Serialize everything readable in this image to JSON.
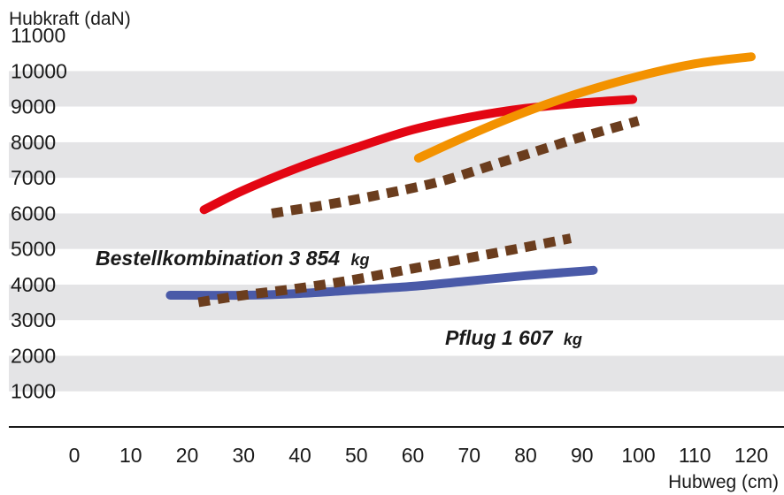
{
  "chart_data": {
    "type": "line",
    "ylabel": "Hubkraft (daN)",
    "xlabel": "Hubweg (cm)",
    "xlim": [
      0,
      120
    ],
    "ylim": [
      0,
      11000
    ],
    "xticks": [
      0,
      10,
      20,
      30,
      40,
      50,
      60,
      70,
      80,
      90,
      100,
      110,
      120
    ],
    "yticks": [
      1000,
      2000,
      3000,
      4000,
      5000,
      6000,
      7000,
      8000,
      9000,
      10000,
      11000
    ],
    "grid": "alternating horizontal bands",
    "series": [
      {
        "color": "#e30613",
        "style": "solid",
        "points": [
          [
            23,
            6100
          ],
          [
            30,
            6650
          ],
          [
            40,
            7300
          ],
          [
            50,
            7850
          ],
          [
            60,
            8350
          ],
          [
            70,
            8700
          ],
          [
            80,
            8950
          ],
          [
            90,
            9100
          ],
          [
            99,
            9200
          ]
        ]
      },
      {
        "color": "#f39200",
        "style": "solid",
        "points": [
          [
            61,
            7550
          ],
          [
            70,
            8200
          ],
          [
            80,
            8850
          ],
          [
            90,
            9400
          ],
          [
            100,
            9850
          ],
          [
            110,
            10200
          ],
          [
            120,
            10400
          ]
        ]
      },
      {
        "color": "#6b3d1e",
        "style": "dotted",
        "points": [
          [
            35,
            6000
          ],
          [
            45,
            6250
          ],
          [
            55,
            6550
          ],
          [
            65,
            6900
          ],
          [
            75,
            7400
          ],
          [
            85,
            7900
          ],
          [
            90,
            8150
          ],
          [
            100,
            8600
          ]
        ]
      },
      {
        "color": "#4a5aa8",
        "style": "solid",
        "points": [
          [
            17,
            3700
          ],
          [
            30,
            3700
          ],
          [
            40,
            3750
          ],
          [
            50,
            3850
          ],
          [
            60,
            3950
          ],
          [
            70,
            4100
          ],
          [
            80,
            4250
          ],
          [
            92,
            4400
          ]
        ]
      },
      {
        "color": "#6b3d1e",
        "style": "dotted",
        "points": [
          [
            22,
            3500
          ],
          [
            30,
            3700
          ],
          [
            40,
            3900
          ],
          [
            50,
            4150
          ],
          [
            60,
            4450
          ],
          [
            70,
            4750
          ],
          [
            80,
            5050
          ],
          [
            88,
            5300
          ]
        ]
      }
    ],
    "annotations": [
      {
        "text": "Bestellkombination 3 854",
        "unit": "kg"
      },
      {
        "text": "Pflug 1 607",
        "unit": "kg"
      }
    ]
  }
}
